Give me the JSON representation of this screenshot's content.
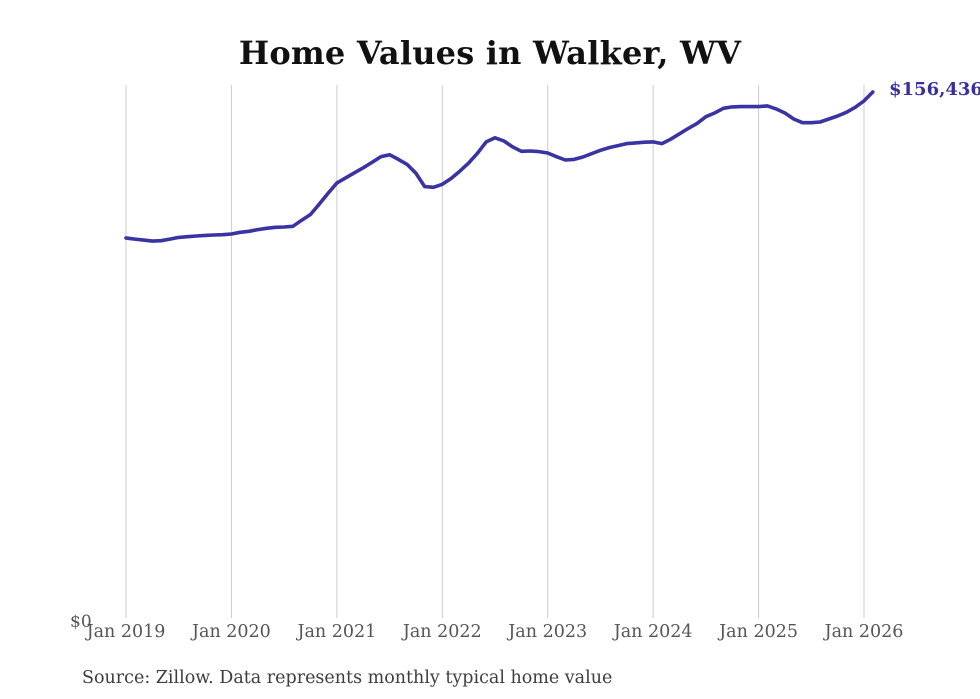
{
  "title": "Home Values in Walker, WV",
  "end_label": "$156,436",
  "y_zero_label": "$0",
  "source_note": "Source: Zillow. Data represents monthly typical home value",
  "colors": {
    "line": "#3a34a3",
    "grid": "#cccccc",
    "axis_text": "#555555",
    "title_text": "#111111",
    "end_label_text": "#35309b",
    "source_text": "#3d3d3d",
    "background": "#ffffff"
  },
  "chart_data": {
    "type": "line",
    "title": "Home Values in Walker, WV",
    "xlabel": "",
    "ylabel": "",
    "unit": "USD",
    "grid": "vertical-only",
    "legend": "none",
    "ylim": [
      0,
      158500
    ],
    "x_tick_labels": [
      "Jan 2019",
      "Jan 2020",
      "Jan 2021",
      "Jan 2022",
      "Jan 2023",
      "Jan 2024",
      "Jan 2025",
      "Jan 2026"
    ],
    "y_tick_labels": [
      "$0"
    ],
    "last_point_annotation": "$156,436",
    "series": [
      {
        "name": "Monthly typical home value",
        "start_month": "2019-01",
        "end_month": "2026-02",
        "frequency": "monthly",
        "values": [
          113000,
          112700,
          112400,
          112100,
          112200,
          112700,
          113200,
          113400,
          113600,
          113800,
          113900,
          114000,
          114200,
          114700,
          115000,
          115500,
          115900,
          116200,
          116300,
          116500,
          118300,
          120000,
          123100,
          126300,
          129400,
          130900,
          132400,
          133900,
          135500,
          137200,
          137800,
          136400,
          134900,
          132300,
          128300,
          128100,
          129000,
          130700,
          132900,
          135300,
          138200,
          141600,
          142800,
          141900,
          140100,
          138800,
          138900,
          138700,
          138300,
          137200,
          136200,
          136400,
          137100,
          138100,
          139100,
          139900,
          140500,
          141100,
          141300,
          141500,
          141600,
          141100,
          142400,
          144000,
          145600,
          147100,
          149100,
          150200,
          151600,
          152000,
          152100,
          152100,
          152100,
          152300,
          151400,
          150200,
          148400,
          147300,
          147300,
          147500,
          148400,
          149300,
          150400,
          151900,
          153800,
          156436
        ]
      }
    ]
  }
}
